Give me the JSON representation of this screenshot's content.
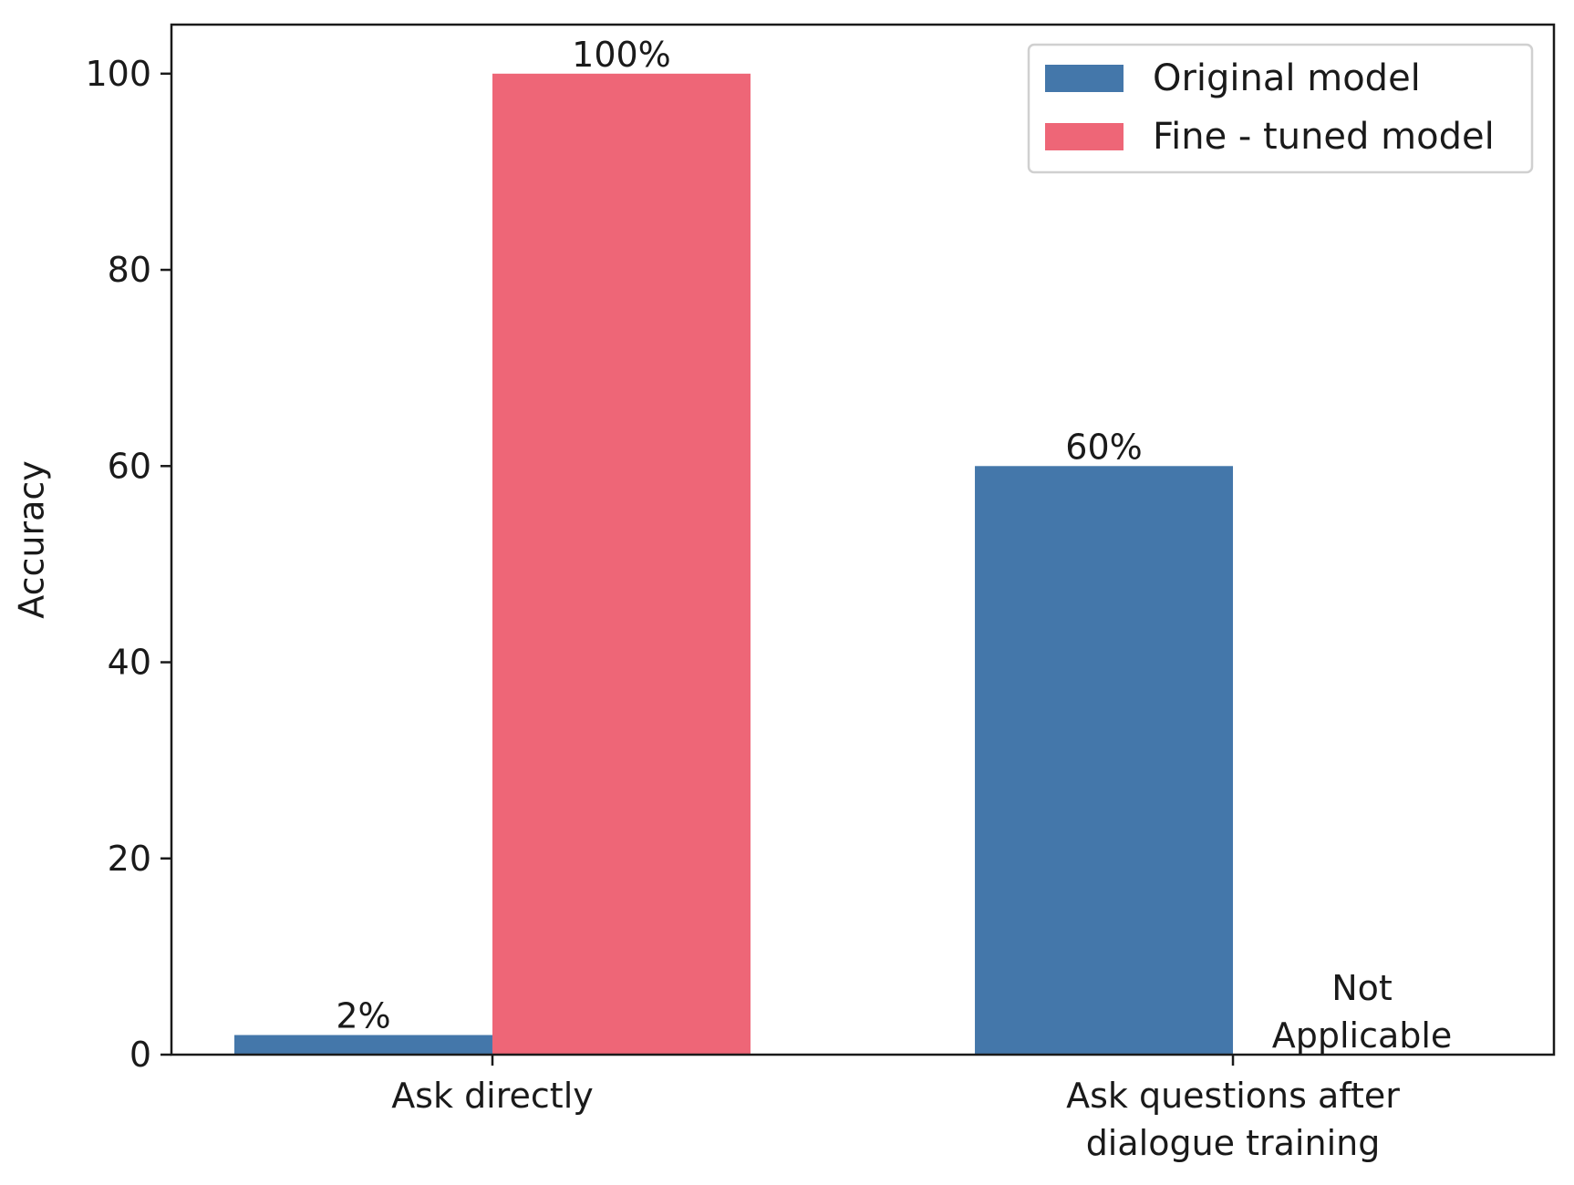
{
  "chart_data": {
    "type": "bar",
    "title": "",
    "xlabel": "",
    "ylabel": "Accuracy",
    "ylim": [
      0,
      105
    ],
    "yticks": [
      0,
      20,
      40,
      60,
      80,
      100
    ],
    "categories": [
      "Ask directly",
      "Ask questions after\ndialogue training"
    ],
    "series": [
      {
        "name": "Original model",
        "color": "#4477aa",
        "values": [
          2,
          60
        ],
        "labels": [
          "2%",
          "60%"
        ]
      },
      {
        "name": "Fine - tuned model",
        "color": "#ee6677",
        "values": [
          100,
          null
        ],
        "labels": [
          "100%",
          "Not\nApplicable"
        ]
      }
    ],
    "grid": false,
    "legend_position": "top-right"
  }
}
